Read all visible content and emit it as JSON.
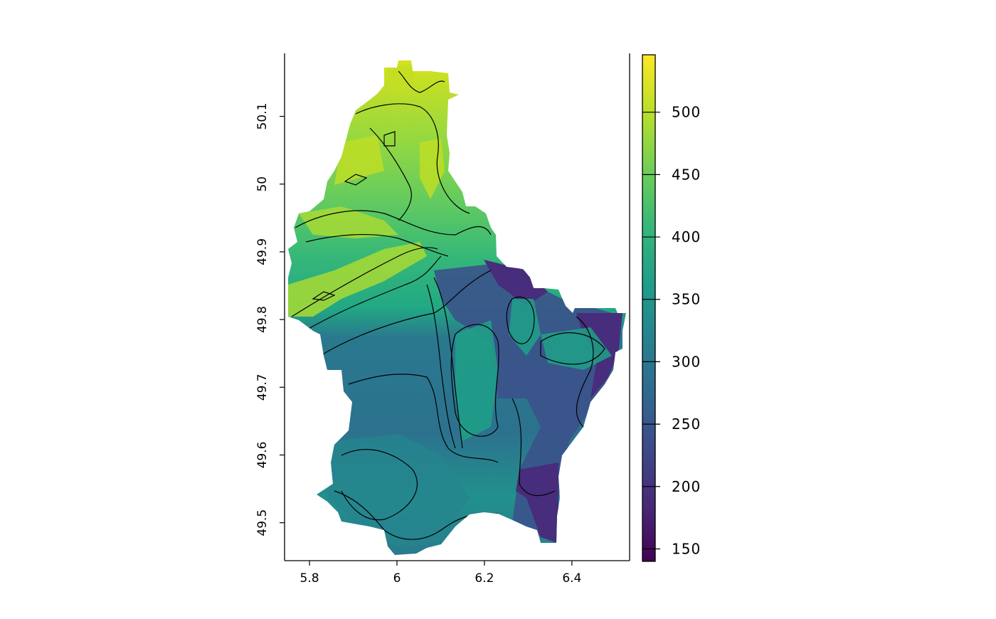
{
  "chart_data": {
    "type": "heatmap",
    "subtype": "raster with contour lines",
    "title": "",
    "xlabel": "",
    "ylabel": "",
    "xlim": [
      5.743,
      6.532
    ],
    "ylim": [
      49.444,
      50.193
    ],
    "x_ticks": [
      "5.8",
      "6",
      "6.2",
      "6.4"
    ],
    "x_tick_values": [
      5.8,
      6.0,
      6.2,
      6.4
    ],
    "y_ticks": [
      "49.5",
      "49.6",
      "49.7",
      "49.8",
      "49.9",
      "50",
      "50.1"
    ],
    "y_tick_values": [
      49.5,
      49.6,
      49.7,
      49.8,
      49.9,
      50.0,
      50.1
    ],
    "grid": false,
    "colorbar": {
      "position": "right",
      "palette": "viridis",
      "range": [
        140,
        546
      ],
      "ticks": [
        "150",
        "200",
        "250",
        "300",
        "350",
        "400",
        "450",
        "500"
      ],
      "tick_values": [
        150,
        200,
        250,
        300,
        350,
        400,
        450,
        500
      ],
      "colors": [
        "#440154",
        "#482878",
        "#3e4989",
        "#31688e",
        "#26828e",
        "#1f9e89",
        "#35b779",
        "#6ece58",
        "#b5de2b",
        "#fde725"
      ]
    },
    "contour_color": "#000000",
    "pattern": "higher values (yellow-green) in the north and northwest, lower values (blue/purple) in the east and southeast"
  }
}
